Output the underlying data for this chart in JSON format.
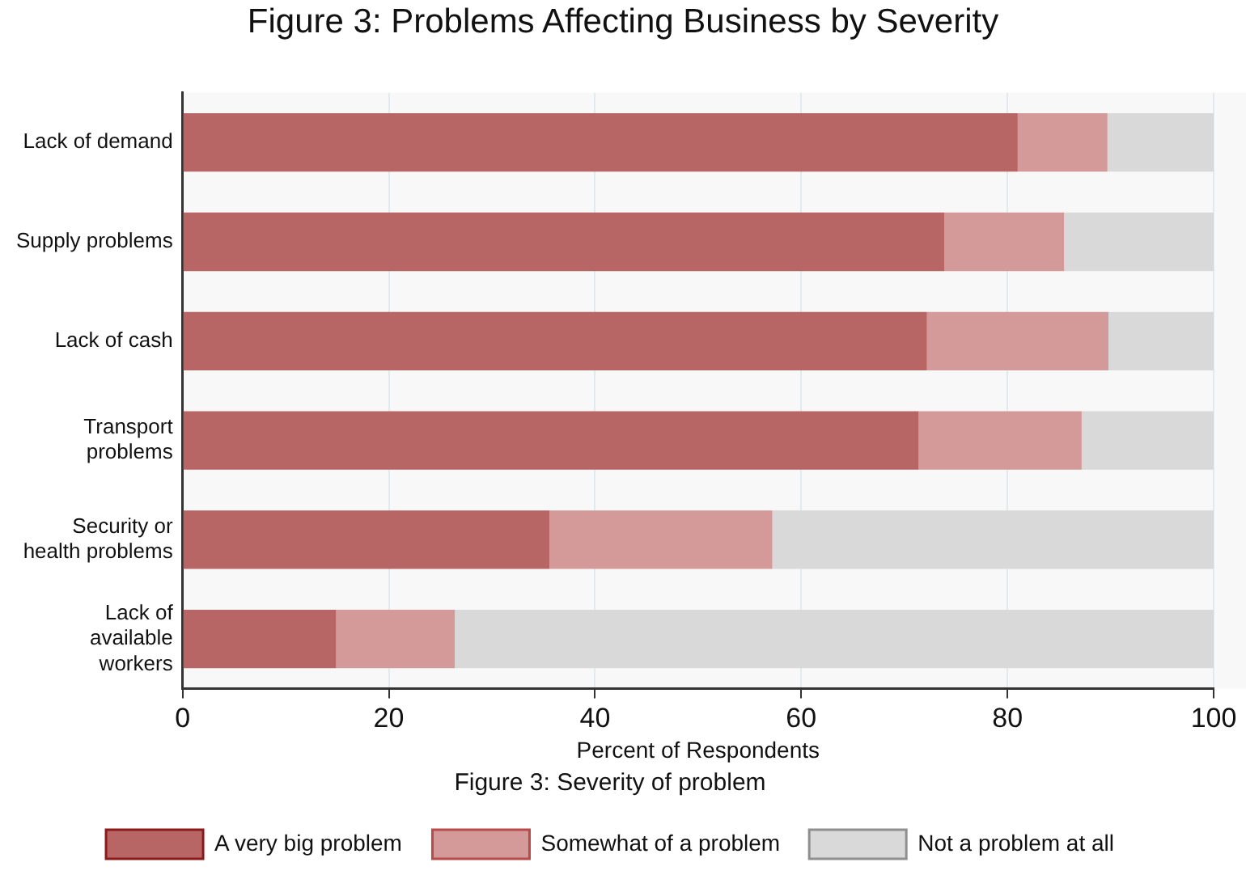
{
  "chart_data": {
    "type": "bar",
    "orientation": "horizontal",
    "stacked": true,
    "title": "Figure 3: Problems Affecting Business by Severity",
    "xlabel": "Percent of Respondents",
    "legend_title": "Figure 3: Severity of problem",
    "categories": [
      "Lack of demand",
      "Supply problems",
      "Lack of cash",
      "Transport problems",
      "Security or health problems",
      "Lack of available workers"
    ],
    "series": [
      {
        "name": "A very big problem",
        "color": "#b86566",
        "values": [
          81.0,
          73.9,
          72.2,
          71.4,
          35.6,
          14.9
        ]
      },
      {
        "name": "Somewhat of a problem",
        "color": "#d49a9a",
        "values": [
          8.7,
          11.6,
          17.6,
          15.8,
          21.6,
          11.5
        ]
      },
      {
        "name": "Not a problem at all",
        "color": "#d9d9d9",
        "values": [
          10.3,
          14.5,
          10.2,
          12.8,
          42.8,
          73.6
        ]
      }
    ],
    "xlim": [
      0,
      100
    ],
    "xticks": [
      0,
      20,
      40,
      60,
      80,
      100
    ],
    "grid": "x",
    "legend": "bottom"
  }
}
